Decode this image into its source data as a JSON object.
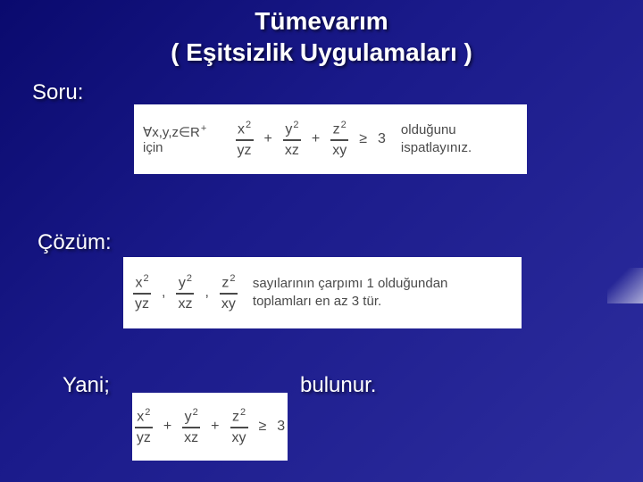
{
  "title": {
    "line1": "Tümevarım",
    "line2": "( Eşitsizlik Uygulamaları )"
  },
  "labels": {
    "soru": "Soru:",
    "cozum": "Çözüm:",
    "yani": "Yani;",
    "bulunur": "bulunur."
  },
  "soru_box": {
    "lead_forall": "∀x,y,z∈R",
    "lead_sup": "+",
    "lead_icin": " için",
    "plus": "+",
    "ge": "≥",
    "rhs": "3",
    "trail": "olduğunu ispatlayınız.",
    "frac1": {
      "num_base": "x",
      "num_exp": "2",
      "den": "yz"
    },
    "frac2": {
      "num_base": "y",
      "num_exp": "2",
      "den": "xz"
    },
    "frac3": {
      "num_base": "z",
      "num_exp": "2",
      "den": "xy"
    }
  },
  "cozum_box": {
    "sep": ",",
    "trail_line1": "sayılarının çarpımı 1 olduğundan",
    "trail_line2": "toplamları en az 3 tür.",
    "frac1": {
      "num_base": "x",
      "num_exp": "2",
      "den": "yz"
    },
    "frac2": {
      "num_base": "y",
      "num_exp": "2",
      "den": "xz"
    },
    "frac3": {
      "num_base": "z",
      "num_exp": "2",
      "den": "xy"
    }
  },
  "yani_box": {
    "plus": "+",
    "ge": "≥",
    "rhs": "3",
    "frac1": {
      "num_base": "x",
      "num_exp": "2",
      "den": "yz"
    },
    "frac2": {
      "num_base": "y",
      "num_exp": "2",
      "den": "xz"
    },
    "frac3": {
      "num_base": "z",
      "num_exp": "2",
      "den": "xy"
    }
  },
  "colors": {
    "bg_start": "#0a0a6e",
    "bg_end": "#2d2d9e",
    "text_light": "#ffffff",
    "box_bg": "#ffffff",
    "box_text": "#4a4a4a"
  },
  "typography": {
    "title_fontsize": 28,
    "label_fontsize": 24,
    "math_fontsize": 16
  }
}
